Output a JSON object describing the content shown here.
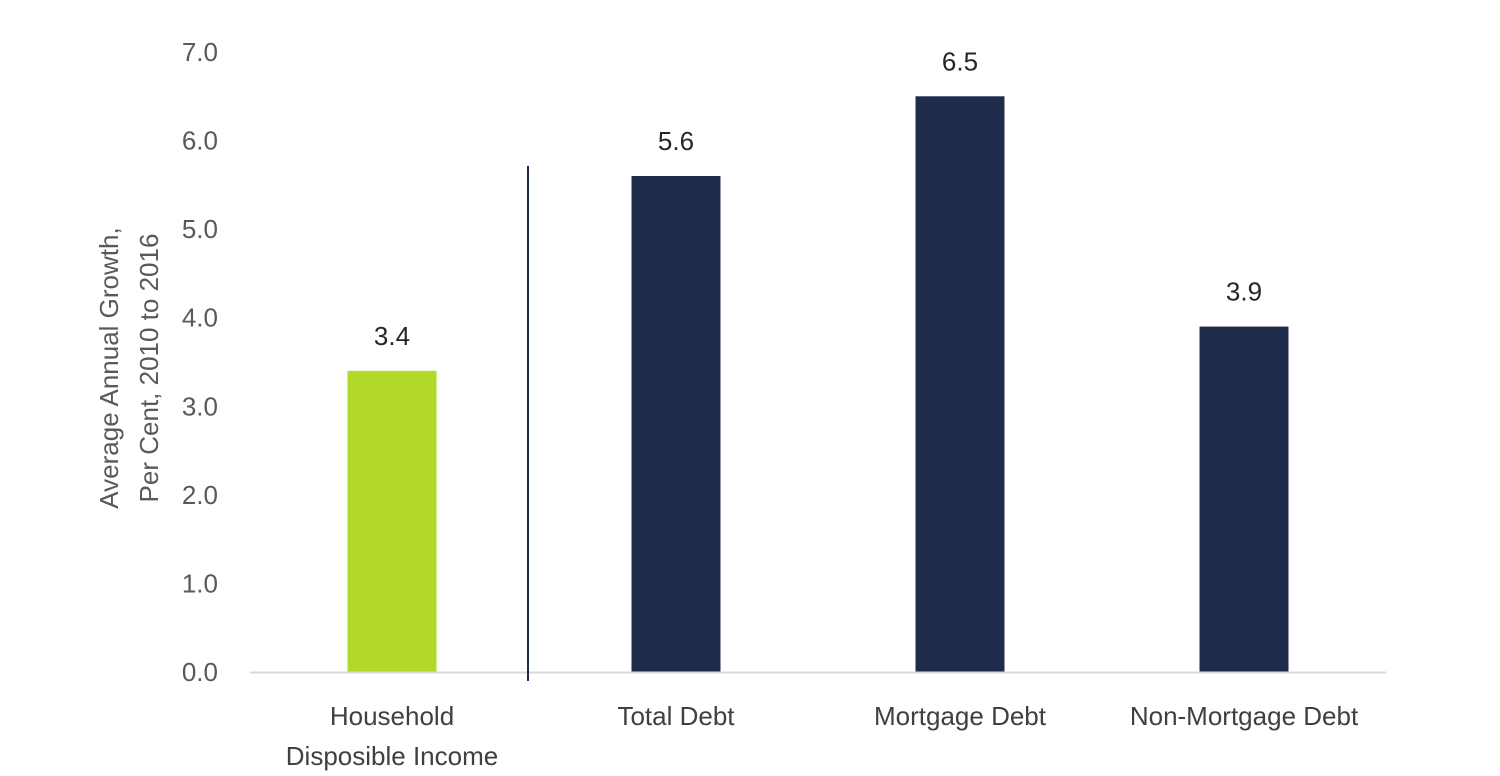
{
  "chart_data": {
    "type": "bar",
    "categories": [
      [
        "Household",
        "Disposible Income"
      ],
      [
        "Total Debt"
      ],
      [
        "Mortgage Debt"
      ],
      [
        "Non-Mortgage Debt"
      ]
    ],
    "values": [
      3.4,
      5.6,
      6.5,
      3.9
    ],
    "bar_colors": [
      "#b2d92a",
      "#1e2b4a",
      "#1e2b4a",
      "#1e2b4a"
    ],
    "data_labels": [
      "3.4",
      "5.6",
      "6.5",
      "3.9"
    ],
    "ylabel": [
      "Average Annual Growth,",
      "Per Cent, 2010 to 2016"
    ],
    "ylim": [
      0,
      7
    ],
    "yticks": [
      0,
      1,
      2,
      3,
      4,
      5,
      6,
      7
    ],
    "ytick_labels": [
      "0.0",
      "1.0",
      "2.0",
      "3.0",
      "4.0",
      "5.0",
      "6.0",
      "7.0"
    ],
    "grid": false,
    "separator_after_category": 0,
    "separator_color": "#1e2b4a",
    "axis_color": "#d9d9d9"
  }
}
